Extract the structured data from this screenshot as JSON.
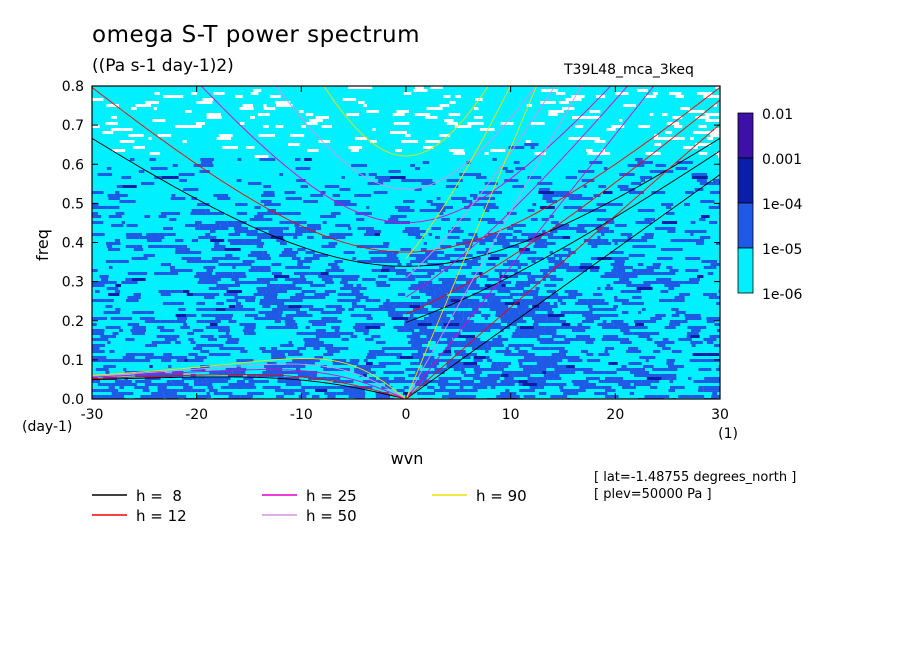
{
  "title": "omega S-T power spectrum",
  "units": "((Pa s-1 day-1)2)",
  "run_label": "T39L48_mca_3keq",
  "meta_lines": [
    "[ lat=-1.48755 degrees_north ]",
    "[ plev=50000 Pa ]"
  ],
  "colorbar": {
    "labels": [
      "0.01",
      "0.001",
      "1e-04",
      "1e-05",
      "1e-06"
    ],
    "colors": [
      "#3d10a8",
      "#0a1ea8",
      "#1e5ae6",
      "#00f0ff"
    ]
  },
  "chart_data": {
    "type": "heatmap",
    "title": "omega S-T power spectrum",
    "subtitle": "((Pa s-1 day-1)2)",
    "xlabel": "wvn",
    "ylabel": "freq",
    "x_unit": "(1)",
    "y_unit": "(day-1)",
    "xlim": [
      -30,
      30
    ],
    "ylim": [
      0,
      0.8
    ],
    "x_ticks": [
      "-30",
      "-20",
      "-10",
      "0",
      "10",
      "20",
      "30"
    ],
    "y_ticks": [
      "0.0",
      "0.1",
      "0.2",
      "0.3",
      "0.4",
      "0.5",
      "0.6",
      "0.7",
      "0.8"
    ],
    "color_levels": [
      1e-06,
      1e-05,
      0.0001,
      0.001,
      0.01
    ],
    "dispersion_curves": [
      {
        "name": "h =  8",
        "color": "#000000",
        "h": 8
      },
      {
        "name": "h = 12",
        "color": "#ff0000",
        "h": 12
      },
      {
        "name": "h = 25",
        "color": "#e600c8",
        "h": 25
      },
      {
        "name": "h = 50",
        "color": "#d890e8",
        "h": 50
      },
      {
        "name": "h = 90",
        "color": "#f0e000",
        "h": 90
      }
    ]
  }
}
